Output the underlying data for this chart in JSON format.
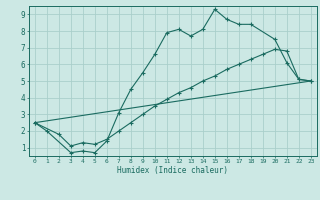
{
  "xlabel": "Humidex (Indice chaleur)",
  "bg_color": "#cce8e4",
  "grid_color": "#aacfcb",
  "line_color": "#1a6b60",
  "xlim": [
    -0.5,
    23.5
  ],
  "ylim": [
    0.5,
    9.5
  ],
  "xticks": [
    0,
    1,
    2,
    3,
    4,
    5,
    6,
    7,
    8,
    9,
    10,
    11,
    12,
    13,
    14,
    15,
    16,
    17,
    18,
    19,
    20,
    21,
    22,
    23
  ],
  "yticks": [
    1,
    2,
    3,
    4,
    5,
    6,
    7,
    8,
    9
  ],
  "line1_x": [
    0,
    1,
    3,
    4,
    5,
    6,
    7,
    8,
    9,
    10,
    11,
    12,
    13,
    14,
    15,
    16,
    17,
    18,
    20,
    21,
    22,
    23
  ],
  "line1_y": [
    2.5,
    2.0,
    0.7,
    0.8,
    0.7,
    1.4,
    3.1,
    4.5,
    5.5,
    6.6,
    7.9,
    8.1,
    7.7,
    8.1,
    9.3,
    8.7,
    8.4,
    8.4,
    7.5,
    6.1,
    5.1,
    5.0
  ],
  "line2_x": [
    0,
    2,
    3,
    4,
    5,
    6,
    7,
    8,
    9,
    10,
    11,
    12,
    13,
    14,
    15,
    16,
    17,
    18,
    19,
    20,
    21,
    22,
    23
  ],
  "line2_y": [
    2.5,
    1.8,
    1.1,
    1.3,
    1.2,
    1.5,
    2.0,
    2.5,
    3.0,
    3.5,
    3.9,
    4.3,
    4.6,
    5.0,
    5.3,
    5.7,
    6.0,
    6.3,
    6.6,
    6.9,
    6.8,
    5.1,
    5.0
  ],
  "line3_x": [
    0,
    23
  ],
  "line3_y": [
    2.5,
    5.0
  ]
}
